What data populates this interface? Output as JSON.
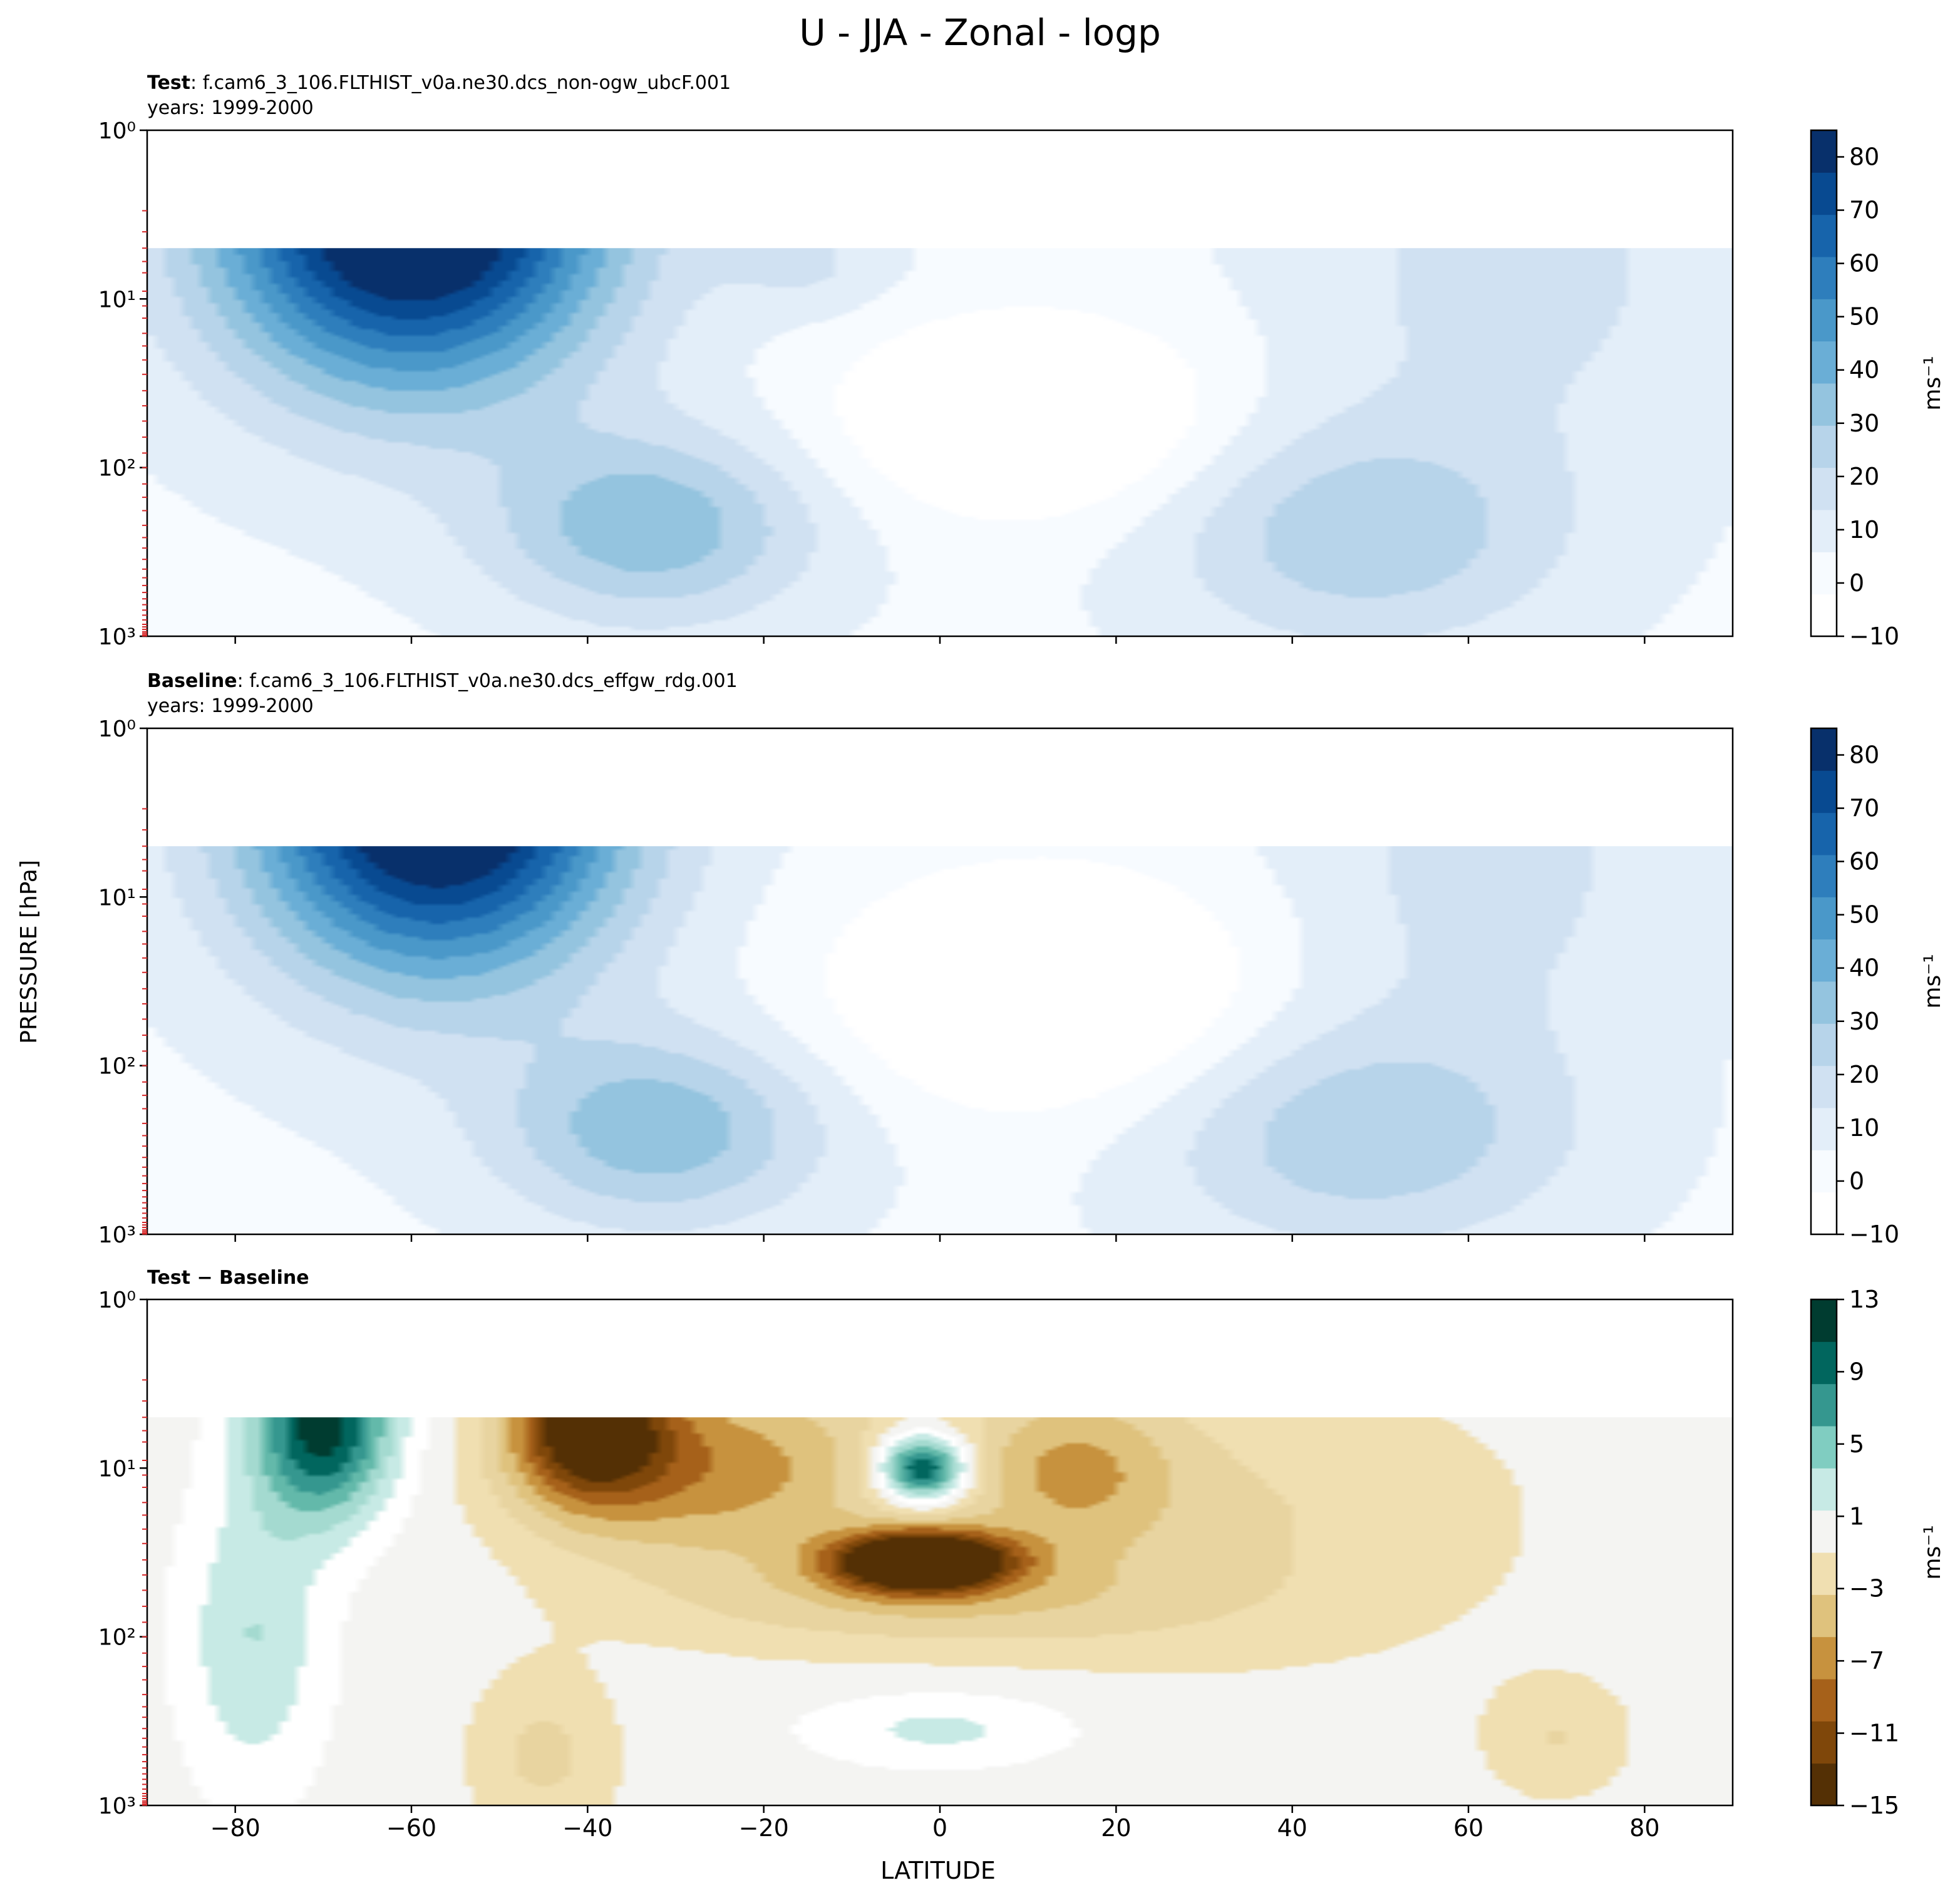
{
  "figure": {
    "title": "U - JJA - Zonal - logp",
    "ylabel": "PRESSURE [hPa]",
    "xlabel": "LATITUDE"
  },
  "panels": [
    {
      "id": "test",
      "label_bold": "Test",
      "label_rest": ": f.cam6_3_106.FLTHIST_v0a.ne30.dcs_non-ogw_ubcF.001",
      "years": "years: 1999-2000"
    },
    {
      "id": "baseline",
      "label_bold": "Baseline",
      "label_rest": ": f.cam6_3_106.FLTHIST_v0a.ne30.dcs_effgw_rdg.001",
      "years": "years: 1999-2000"
    },
    {
      "id": "diff",
      "label_bold": "Test − Baseline",
      "label_rest": "",
      "years": ""
    }
  ],
  "colorbars": {
    "wind": {
      "unit": "ms⁻¹",
      "ticks": [
        "−10",
        "0",
        "10",
        "20",
        "30",
        "40",
        "50",
        "60",
        "70",
        "80"
      ],
      "tick_values": [
        -10,
        0,
        10,
        20,
        30,
        40,
        50,
        60,
        70,
        80
      ],
      "range": [
        -10,
        85
      ],
      "colors": [
        "#ffffff",
        "#f7fbff",
        "#e3eef9",
        "#d0e1f2",
        "#b7d4ea",
        "#94c4df",
        "#6aaed6",
        "#4a98c9",
        "#2e7ebc",
        "#1764ab",
        "#084a91",
        "#08306b"
      ]
    },
    "diff": {
      "unit": "ms⁻¹",
      "ticks": [
        "13",
        "9",
        "5",
        "1",
        "−3",
        "−7",
        "−11",
        "−15"
      ],
      "tick_values": [
        13,
        9,
        5,
        1,
        -3,
        -7,
        -11,
        -15
      ],
      "range": [
        -15,
        13
      ],
      "colors": [
        "#543005",
        "#7f470a",
        "#a6611a",
        "#c7923e",
        "#dfc27d",
        "#f0dfb1",
        "#f4f4f2",
        "#c7eae5",
        "#80cdc1",
        "#35978f",
        "#01665e",
        "#003c30"
      ]
    }
  },
  "chart_data": [
    {
      "type": "filled_contour",
      "title": "Test : f.cam6_3_106.FLTHIST_v0a.ne30.dcs_non-ogw_ubcF.001",
      "subtitle": "years: 1999-2000",
      "xlabel": "LATITUDE",
      "ylabel": "PRESSURE [hPa]",
      "xlim": [
        -90,
        90
      ],
      "ylim": [
        1000,
        1
      ],
      "yscale": "log",
      "x_ticks": [
        -80,
        -60,
        -40,
        -20,
        0,
        20,
        40,
        60,
        80
      ],
      "y_ticks": [
        "10⁰",
        "10¹",
        "10²",
        "10³"
      ],
      "data_top_hPa": 5,
      "features": [
        {
          "name": "southern polar night jet",
          "center_lat": -59,
          "center_p_hPa": 6,
          "max_ms": 85
        },
        {
          "name": "southern subtropical jet",
          "center_lat": -33,
          "center_p_hPa": 230,
          "max_ms": 40
        },
        {
          "name": "northern jet",
          "center_lat": 48,
          "center_p_hPa": 250,
          "max_ms": 25
        },
        {
          "name": "tropical easterlies",
          "center_lat": 5,
          "center_p_hPa": 50,
          "max_ms": -10
        }
      ]
    },
    {
      "type": "filled_contour",
      "title": "Baseline : f.cam6_3_106.FLTHIST_v0a.ne30.dcs_effgw_rdg.001",
      "subtitle": "years: 1999-2000",
      "xlabel": "LATITUDE",
      "ylabel": "PRESSURE [hPa]",
      "xlim": [
        -90,
        90
      ],
      "ylim": [
        1000,
        1
      ],
      "yscale": "log",
      "x_ticks": [
        -80,
        -60,
        -40,
        -20,
        0,
        20,
        40,
        60,
        80
      ],
      "y_ticks": [
        "10⁰",
        "10¹",
        "10²",
        "10³"
      ],
      "data_top_hPa": 5,
      "features": [
        {
          "name": "southern polar night jet",
          "center_lat": -56,
          "center_p_hPa": 5.5,
          "max_ms": 85
        },
        {
          "name": "southern subtropical jet",
          "center_lat": -32,
          "center_p_hPa": 250,
          "max_ms": 40
        },
        {
          "name": "northern jet",
          "center_lat": 48,
          "center_p_hPa": 260,
          "max_ms": 25
        },
        {
          "name": "tropical easterlies",
          "center_lat": 5,
          "center_p_hPa": 50,
          "max_ms": -10
        }
      ]
    },
    {
      "type": "filled_contour",
      "title": "Test − Baseline",
      "xlabel": "LATITUDE",
      "ylabel": "PRESSURE [hPa]",
      "xlim": [
        -90,
        90
      ],
      "ylim": [
        1000,
        1
      ],
      "yscale": "log",
      "x_ticks": [
        -80,
        -60,
        -40,
        -20,
        0,
        20,
        40,
        60,
        80
      ],
      "y_ticks": [
        "10⁰",
        "10¹",
        "10²",
        "10³"
      ],
      "data_top_hPa": 5,
      "features": [
        {
          "name": "positive southern high-latitude",
          "center_lat": -70,
          "center_p_hPa": 6,
          "max_ms": 13
        },
        {
          "name": "negative southern midlatitude",
          "center_lat": -42,
          "center_p_hPa": 6,
          "max_ms": -13
        },
        {
          "name": "positive equatorial upper",
          "center_lat": -2,
          "center_p_hPa": 10,
          "max_ms": 13
        },
        {
          "name": "negative equatorial lower",
          "center_lat": -2,
          "center_p_hPa": 45,
          "max_ms": -15
        },
        {
          "name": "weak positive tropics",
          "center_lat": 0,
          "center_p_hPa": 350,
          "max_ms": 3
        },
        {
          "name": "weak negative arctic",
          "center_lat": 70,
          "center_p_hPa": 300,
          "max_ms": -3
        }
      ]
    }
  ]
}
